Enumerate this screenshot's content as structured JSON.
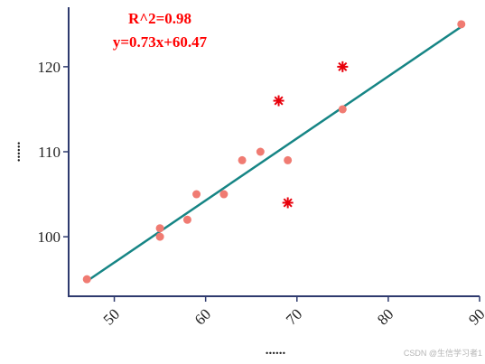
{
  "chart_data": {
    "type": "scatter",
    "x_range": [
      45,
      90
    ],
    "y_range": [
      93,
      127
    ],
    "x_ticks": [
      50,
      60,
      70,
      80,
      90
    ],
    "y_ticks": [
      100,
      110,
      120
    ],
    "xlabel": "......",
    "ylabel": "......",
    "grid": false,
    "points": [
      {
        "x": 47,
        "y": 95
      },
      {
        "x": 55,
        "y": 101
      },
      {
        "x": 55,
        "y": 100
      },
      {
        "x": 58,
        "y": 102
      },
      {
        "x": 59,
        "y": 105
      },
      {
        "x": 62,
        "y": 105
      },
      {
        "x": 64,
        "y": 109
      },
      {
        "x": 66,
        "y": 110
      },
      {
        "x": 69,
        "y": 109
      },
      {
        "x": 75,
        "y": 115
      },
      {
        "x": 88,
        "y": 125
      }
    ],
    "outliers": [
      {
        "x": 68,
        "y": 116
      },
      {
        "x": 75,
        "y": 120
      },
      {
        "x": 69,
        "y": 104
      }
    ],
    "regression": {
      "slope": 0.73,
      "intercept": 60.47,
      "x_start": 47,
      "x_end": 88
    },
    "annotations": [
      "R^2=0.98",
      "y=0.73x+60.47"
    ],
    "colors": {
      "axis": "#2e3a6e",
      "points": "#f07b72",
      "outliers": "#e8000b",
      "line": "#168585",
      "annotation": "#ff0000"
    }
  },
  "watermark": "CSDN @生信学习者1"
}
